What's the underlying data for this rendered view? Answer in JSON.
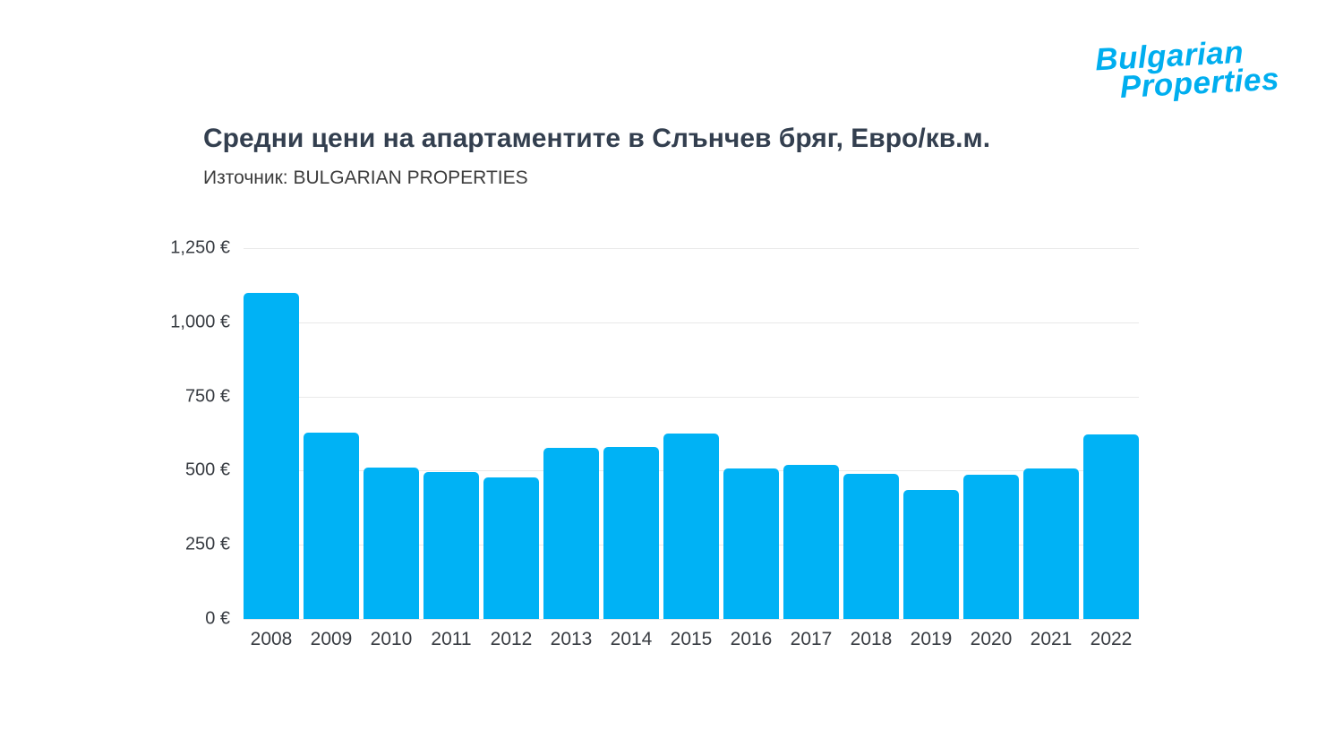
{
  "logo": {
    "line1": "Bulgarian",
    "line2": "Properties"
  },
  "colors": {
    "background": "#ffffff",
    "bar": "#00b2f5",
    "logo": "#00aeef",
    "title": "#333f4f",
    "subtitle": "#3c3c3c",
    "axis_text": "#383c42",
    "gridline": "#e9e9e9"
  },
  "chart_data": {
    "type": "bar",
    "title": "Средни цени на апартаментите в Слънчев бряг, Евро/кв.м.",
    "subtitle": "Източник: BULGARIAN PROPERTIES",
    "categories": [
      "2008",
      "2009",
      "2010",
      "2011",
      "2012",
      "2013",
      "2014",
      "2015",
      "2016",
      "2017",
      "2018",
      "2019",
      "2020",
      "2021",
      "2022"
    ],
    "values": [
      1100,
      629,
      509,
      495,
      477,
      578,
      580,
      624,
      506,
      520,
      488,
      434,
      486,
      507,
      621
    ],
    "xlabel": "",
    "ylabel": "",
    "ylim": [
      0,
      1250
    ],
    "ytick_values": [
      0,
      250,
      500,
      750,
      1000,
      1250
    ],
    "ytick_labels": [
      "0 €",
      "250 €",
      "500 €",
      "750 €",
      "1,000 €",
      "1,250 €"
    ],
    "grid": true,
    "legend_position": "none"
  }
}
